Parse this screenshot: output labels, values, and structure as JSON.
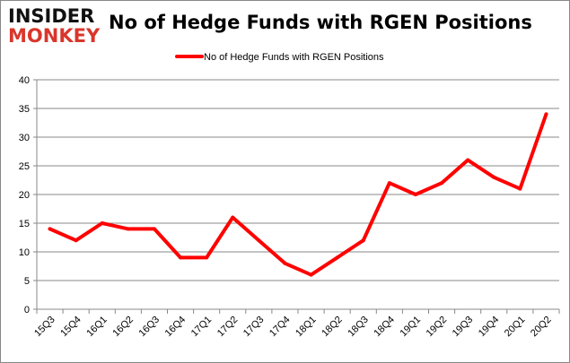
{
  "logo": {
    "line1": "INSIDER",
    "line2": "MONKEY"
  },
  "chart_data": {
    "type": "line",
    "title": "No of Hedge Funds with RGEN Positions",
    "xlabel": "",
    "ylabel": "",
    "categories": [
      "15Q3",
      "15Q4",
      "16Q1",
      "16Q2",
      "16Q3",
      "16Q4",
      "17Q1",
      "17Q2",
      "17Q3",
      "17Q4",
      "18Q1",
      "18Q2",
      "18Q3",
      "18Q4",
      "19Q1",
      "19Q2",
      "19Q3",
      "19Q4",
      "20Q1",
      "20Q2"
    ],
    "series": [
      {
        "name": "No of Hedge Funds with RGEN Positions",
        "color": "#ff0000",
        "values": [
          14,
          12,
          15,
          14,
          14,
          9,
          9,
          16,
          12,
          8,
          6,
          9,
          12,
          22,
          20,
          22,
          26,
          23,
          21,
          34
        ]
      }
    ],
    "ylim": [
      0,
      40
    ],
    "yticks": [
      0,
      5,
      10,
      15,
      20,
      25,
      30,
      35,
      40
    ],
    "grid": true,
    "legend_position": "top-center"
  }
}
